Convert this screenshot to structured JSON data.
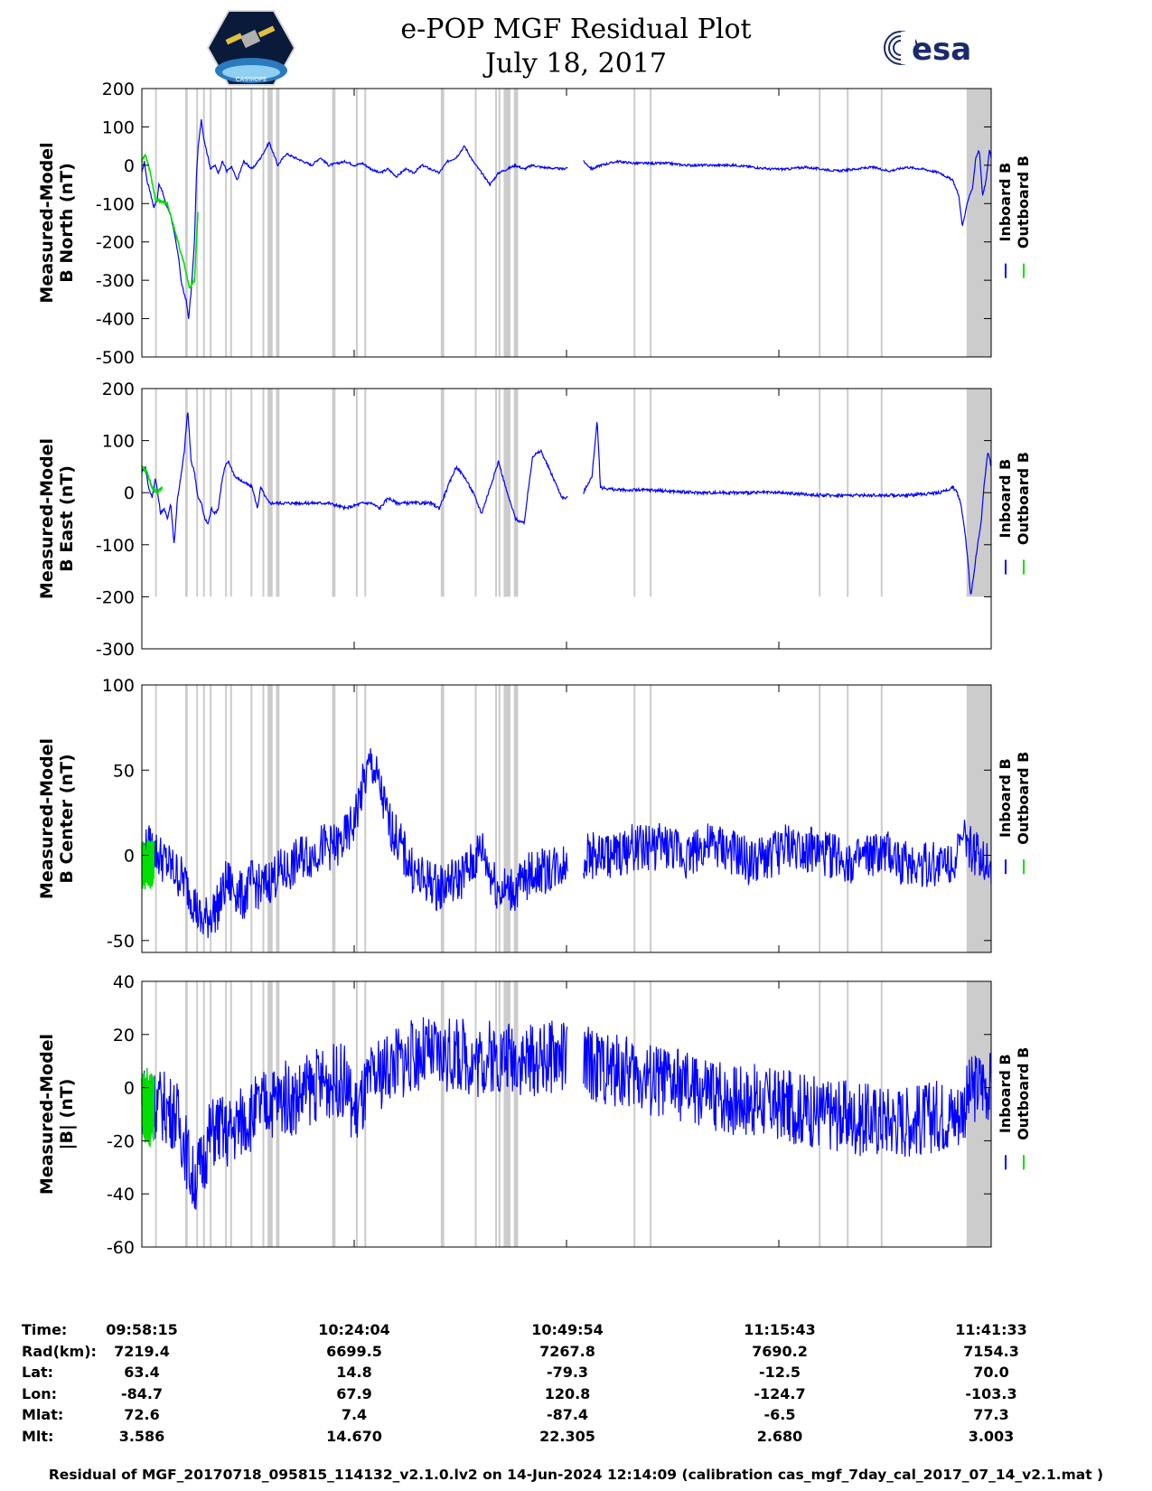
{
  "title": {
    "line1": "e-POP MGF Residual Plot",
    "line2": "July 18, 2017"
  },
  "logos": {
    "left": {
      "icon": "cassiope-mission-logo",
      "text": "CASSIOPE"
    },
    "right": {
      "icon": "esa-logo",
      "text": "esa"
    }
  },
  "colors": {
    "inboard": "#0000ff",
    "outboard": "#00e000",
    "gap": "#cccccc"
  },
  "legend": {
    "inboard": "Inboard B",
    "outboard": "Outboard B"
  },
  "chart_data": [
    {
      "type": "line",
      "ylabel_line1": "Measured-Model",
      "ylabel_line2": "B North (nT)",
      "ylim": [
        -500,
        200
      ],
      "yticks": [
        200,
        100,
        0,
        -100,
        -200,
        -300,
        -400,
        -500
      ],
      "series": [
        {
          "name": "Inboard B",
          "x": [
            0.0,
            0.003,
            0.006,
            0.01,
            0.014,
            0.018,
            0.02,
            0.023,
            0.028,
            0.034,
            0.04,
            0.044,
            0.046,
            0.049,
            0.052,
            0.055,
            0.058,
            0.062,
            0.064,
            0.066,
            0.068,
            0.07,
            0.073,
            0.077,
            0.081,
            0.086,
            0.09,
            0.095,
            0.1,
            0.106,
            0.112,
            0.12,
            0.13,
            0.14,
            0.15,
            0.16,
            0.17,
            0.18,
            0.19,
            0.2,
            0.21,
            0.22,
            0.23,
            0.24,
            0.25,
            0.26,
            0.27,
            0.28,
            0.29,
            0.3,
            0.31,
            0.32,
            0.33,
            0.34,
            0.35,
            0.36,
            0.37,
            0.38,
            0.39,
            0.4,
            0.41,
            0.42,
            0.43,
            0.44,
            0.45,
            0.46,
            0.47,
            0.495,
            0.51,
            0.52,
            0.53,
            0.54,
            0.56,
            0.58,
            0.6,
            0.62,
            0.64,
            0.66,
            0.68,
            0.7,
            0.72,
            0.74,
            0.76,
            0.78,
            0.8,
            0.82,
            0.84,
            0.86,
            0.88,
            0.9,
            0.92,
            0.94,
            0.955,
            0.962,
            0.966,
            0.97,
            0.974,
            0.978,
            0.982,
            0.986,
            0.99,
            0.994,
            0.998,
            1.0
          ],
          "y": [
            -20,
            10,
            -40,
            -70,
            -110,
            -90,
            -50,
            -60,
            -100,
            -130,
            -200,
            -250,
            -300,
            -330,
            -350,
            -400,
            -330,
            -200,
            -40,
            40,
            80,
            120,
            70,
            30,
            -10,
            0,
            -20,
            10,
            -15,
            -5,
            -40,
            10,
            -10,
            20,
            60,
            0,
            30,
            20,
            10,
            0,
            20,
            0,
            5,
            10,
            0,
            5,
            -10,
            -20,
            -10,
            -30,
            -10,
            -20,
            0,
            -10,
            -20,
            10,
            20,
            50,
            10,
            -20,
            -50,
            -20,
            -10,
            0,
            -10,
            0,
            -5,
            -10,
            0,
            10,
            -10,
            0,
            10,
            5,
            5,
            5,
            0,
            0,
            0,
            0,
            -5,
            -10,
            -10,
            -5,
            -10,
            -15,
            -10,
            -5,
            -15,
            -5,
            -10,
            -20,
            -40,
            -80,
            -160,
            -120,
            -80,
            -60,
            20,
            40,
            -80,
            -40,
            40,
            20
          ]
        },
        {
          "name": "Outboard B",
          "x": [
            0.0,
            0.004,
            0.01,
            0.016,
            0.03,
            0.05,
            0.056,
            0.062,
            0.066
          ],
          "y": [
            10,
            30,
            -20,
            -90,
            -100,
            -260,
            -320,
            -300,
            -120
          ]
        }
      ]
    },
    {
      "type": "line",
      "ylabel_line1": "Measured-Model",
      "ylabel_line2": "B East (nT)",
      "ylim": [
        -300,
        200
      ],
      "yticks": [
        200,
        100,
        0,
        -100,
        -200,
        -300
      ],
      "series": [
        {
          "name": "Inboard B",
          "x": [
            0.0,
            0.004,
            0.008,
            0.012,
            0.016,
            0.022,
            0.026,
            0.03,
            0.034,
            0.038,
            0.042,
            0.046,
            0.05,
            0.054,
            0.058,
            0.062,
            0.066,
            0.07,
            0.074,
            0.078,
            0.082,
            0.086,
            0.09,
            0.094,
            0.098,
            0.102,
            0.11,
            0.12,
            0.13,
            0.136,
            0.14,
            0.146,
            0.15,
            0.16,
            0.18,
            0.2,
            0.22,
            0.24,
            0.26,
            0.27,
            0.28,
            0.29,
            0.3,
            0.32,
            0.34,
            0.35,
            0.36,
            0.37,
            0.38,
            0.39,
            0.4,
            0.41,
            0.42,
            0.43,
            0.44,
            0.45,
            0.46,
            0.47,
            0.495,
            0.51,
            0.52,
            0.526,
            0.53,
            0.536,
            0.54,
            0.56,
            0.6,
            0.65,
            0.7,
            0.75,
            0.8,
            0.85,
            0.87,
            0.9,
            0.94,
            0.955,
            0.96,
            0.964,
            0.968,
            0.972,
            0.976,
            0.98,
            0.984,
            0.988,
            0.992,
            0.996,
            1.0
          ],
          "y": [
            40,
            50,
            10,
            -10,
            30,
            -40,
            -30,
            -50,
            -20,
            -100,
            -10,
            30,
            80,
            160,
            60,
            40,
            -10,
            -20,
            -50,
            -60,
            -30,
            -40,
            -30,
            20,
            50,
            60,
            30,
            20,
            10,
            -30,
            10,
            -10,
            -20,
            -20,
            -20,
            -20,
            -20,
            -30,
            -20,
            -20,
            -30,
            -10,
            -20,
            -20,
            -20,
            -30,
            10,
            50,
            30,
            0,
            -40,
            10,
            60,
            0,
            -50,
            -60,
            70,
            80,
            -10,
            -10,
            0,
            20,
            30,
            140,
            10,
            5,
            5,
            0,
            0,
            0,
            -5,
            -5,
            -5,
            -5,
            0,
            10,
            0,
            -20,
            -60,
            -120,
            -200,
            -150,
            -100,
            -60,
            20,
            80,
            50
          ]
        },
        {
          "name": "Outboard B",
          "x": [
            0.0,
            0.006,
            0.012,
            0.018,
            0.024
          ],
          "y": [
            50,
            40,
            10,
            0,
            10
          ]
        }
      ]
    },
    {
      "type": "line",
      "ylabel_line1": "Measured-Model",
      "ylabel_line2": "B Center (nT)",
      "ylim": [
        -57,
        100
      ],
      "yticks": [
        100,
        50,
        0,
        -50
      ],
      "series": [
        {
          "name": "Inboard B",
          "x": [
            0.0,
            0.01,
            0.02,
            0.03,
            0.04,
            0.05,
            0.06,
            0.07,
            0.08,
            0.09,
            0.1,
            0.11,
            0.12,
            0.13,
            0.14,
            0.15,
            0.16,
            0.17,
            0.18,
            0.19,
            0.2,
            0.21,
            0.22,
            0.23,
            0.24,
            0.25,
            0.26,
            0.27,
            0.28,
            0.29,
            0.3,
            0.31,
            0.32,
            0.33,
            0.34,
            0.35,
            0.36,
            0.37,
            0.38,
            0.39,
            0.4,
            0.41,
            0.42,
            0.43,
            0.44,
            0.45,
            0.46,
            0.47,
            0.495,
            0.51,
            0.52,
            0.53,
            0.54,
            0.56,
            0.58,
            0.6,
            0.62,
            0.64,
            0.66,
            0.68,
            0.7,
            0.72,
            0.74,
            0.76,
            0.78,
            0.8,
            0.82,
            0.84,
            0.86,
            0.88,
            0.9,
            0.92,
            0.94,
            0.96,
            0.97,
            0.98,
            0.99,
            1.0
          ],
          "y": [
            0,
            5,
            0,
            -5,
            -10,
            -15,
            -25,
            -40,
            -35,
            -30,
            -15,
            -20,
            -25,
            -15,
            -20,
            -15,
            -10,
            -10,
            -5,
            0,
            0,
            5,
            5,
            5,
            10,
            20,
            40,
            55,
            40,
            20,
            10,
            0,
            -10,
            -15,
            -15,
            -20,
            -15,
            -15,
            -10,
            -5,
            5,
            -10,
            -20,
            -20,
            -20,
            -15,
            -10,
            -10,
            -5,
            -5,
            0,
            0,
            0,
            0,
            5,
            5,
            5,
            0,
            5,
            5,
            0,
            -5,
            0,
            5,
            5,
            0,
            0,
            -5,
            0,
            0,
            -5,
            -5,
            -5,
            0,
            10,
            0,
            0,
            -5
          ]
        },
        {
          "name": "Outboard B",
          "x": [
            0.0,
            0.003,
            0.006,
            0.01,
            0.014
          ],
          "y": [
            -5,
            -7,
            -3,
            -6,
            -4
          ]
        }
      ]
    },
    {
      "type": "line",
      "ylabel_line1": "Measured-Model",
      "ylabel_line2": "|B| (nT)",
      "ylim": [
        -60,
        40
      ],
      "yticks": [
        40,
        20,
        0,
        -20,
        -40,
        -60
      ],
      "series": [
        {
          "name": "Inboard B",
          "x": [
            0.0,
            0.01,
            0.02,
            0.03,
            0.04,
            0.05,
            0.06,
            0.07,
            0.08,
            0.09,
            0.1,
            0.11,
            0.12,
            0.13,
            0.14,
            0.15,
            0.16,
            0.17,
            0.18,
            0.19,
            0.2,
            0.21,
            0.22,
            0.23,
            0.24,
            0.25,
            0.26,
            0.27,
            0.28,
            0.29,
            0.3,
            0.31,
            0.32,
            0.33,
            0.34,
            0.35,
            0.36,
            0.37,
            0.38,
            0.39,
            0.4,
            0.41,
            0.42,
            0.43,
            0.44,
            0.45,
            0.46,
            0.47,
            0.495,
            0.51,
            0.52,
            0.54,
            0.56,
            0.58,
            0.6,
            0.62,
            0.64,
            0.66,
            0.68,
            0.7,
            0.72,
            0.74,
            0.76,
            0.78,
            0.8,
            0.82,
            0.84,
            0.86,
            0.88,
            0.9,
            0.92,
            0.94,
            0.96,
            0.97,
            0.98,
            0.99,
            1.0
          ],
          "y": [
            -5,
            -5,
            -6,
            -8,
            -10,
            -20,
            -35,
            -30,
            -18,
            -15,
            -18,
            -15,
            -12,
            -10,
            -8,
            -5,
            -5,
            -3,
            -5,
            -2,
            0,
            2,
            2,
            3,
            2,
            -10,
            -5,
            2,
            5,
            8,
            10,
            10,
            12,
            13,
            12,
            12,
            12,
            12,
            12,
            10,
            10,
            12,
            11,
            12,
            12,
            10,
            10,
            11,
            12,
            11,
            10,
            8,
            6,
            5,
            3,
            2,
            0,
            -2,
            -3,
            -4,
            -5,
            -6,
            -7,
            -8,
            -10,
            -10,
            -12,
            -12,
            -12,
            -12,
            -12,
            -10,
            -10,
            -5,
            0,
            2,
            0
          ]
        },
        {
          "name": "Outboard B",
          "x": [
            0.0,
            0.003,
            0.006,
            0.01,
            0.014
          ],
          "y": [
            -7,
            -8,
            -6,
            -9,
            -7
          ]
        }
      ]
    }
  ],
  "gaps": [
    [
      0.0155,
      0.0175
    ],
    [
      0.051,
      0.054
    ],
    [
      0.064,
      0.065
    ],
    [
      0.072,
      0.073
    ],
    [
      0.08,
      0.082
    ],
    [
      0.098,
      0.099
    ],
    [
      0.104,
      0.106
    ],
    [
      0.128,
      0.13
    ],
    [
      0.142,
      0.144
    ],
    [
      0.148,
      0.154
    ],
    [
      0.158,
      0.162
    ],
    [
      0.224,
      0.228
    ],
    [
      0.252,
      0.254
    ],
    [
      0.262,
      0.264
    ],
    [
      0.352,
      0.356
    ],
    [
      0.392,
      0.394
    ],
    [
      0.416,
      0.418
    ],
    [
      0.42,
      0.422
    ],
    [
      0.426,
      0.434
    ],
    [
      0.438,
      0.443
    ],
    [
      0.579,
      0.581
    ],
    [
      0.598,
      0.6
    ],
    [
      0.797,
      0.799
    ],
    [
      0.83,
      0.832
    ],
    [
      0.87,
      0.872
    ],
    [
      0.971,
      1.0
    ]
  ],
  "data_gap": [
    0.502,
    0.52
  ],
  "time_table": {
    "rows": [
      {
        "label": "Time:",
        "values": [
          "09:58:15",
          "10:24:04",
          "10:49:54",
          "11:15:43",
          "11:41:33"
        ]
      },
      {
        "label": "Rad(km):",
        "values": [
          "7219.4",
          "6699.5",
          "7267.8",
          "7690.2",
          "7154.3"
        ]
      },
      {
        "label": "Lat:",
        "values": [
          "63.4",
          "14.8",
          "-79.3",
          "-12.5",
          "70.0"
        ]
      },
      {
        "label": "Lon:",
        "values": [
          "-84.7",
          "67.9",
          "120.8",
          "-124.7",
          "-103.3"
        ]
      },
      {
        "label": "Mlat:",
        "values": [
          "72.6",
          "7.4",
          "-87.4",
          "-6.5",
          "77.3"
        ]
      },
      {
        "label": "Mlt:",
        "values": [
          "3.586",
          "14.670",
          "22.305",
          "2.680",
          "3.003"
        ]
      }
    ]
  },
  "footer": "Residual of MGF_20170718_095815_114132_v2.1.0.lv2 on 14-Jun-2024 12:14:09 (calibration cas_mgf_7day_cal_2017_07_14_v2.1.mat )"
}
